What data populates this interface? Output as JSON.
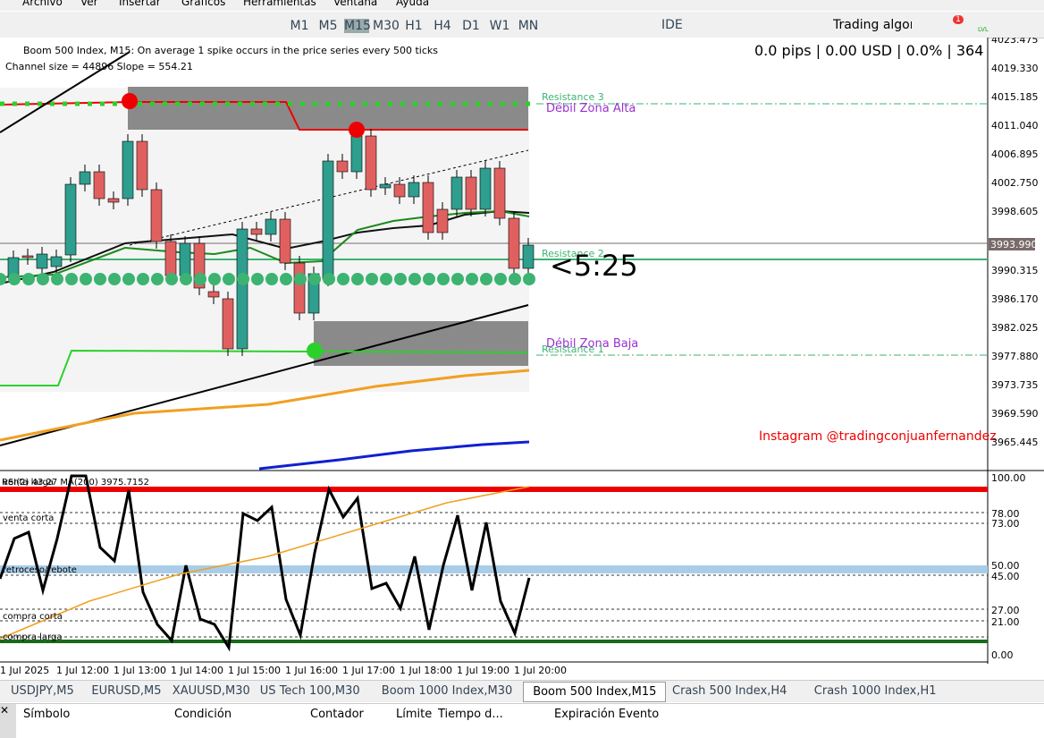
{
  "menu": [
    "Archivo",
    "Ver",
    "Insertar",
    "Gráficos",
    "Herramientas",
    "Ventana",
    "Ayuda"
  ],
  "toolbar": {
    "timeframes": [
      "M1",
      "M5",
      "M15",
      "M30",
      "H1",
      "H4",
      "D1",
      "W1",
      "MN"
    ],
    "active_timeframe": 2,
    "ide": "IDE",
    "search": "Trading algorítr",
    "notifications": "1",
    "lvl": "LVL"
  },
  "chart": {
    "header": "Boom 500 Index, M15:  On average 1 spike occurs in the price series every 500 ticks",
    "channel": "Channel size = 44896 Slope = 554.21",
    "stats": "0.0 pips | 0.00 USD | 0.0% | 364",
    "annotations": {
      "resistance3": "Resistance 3",
      "zona_alta": "Débil Zona Alta",
      "resistance2": "Resistance 2",
      "timer": "<5:25",
      "zona_baja": "Débil Zona Baja",
      "resistance1": "Resistance 1",
      "instagram": "Instagram @tradingconjuanfernandez"
    },
    "price_axis": [
      "4023.475",
      "4019.330",
      "4015.185",
      "4011.040",
      "4006.895",
      "4002.750",
      "3998.605",
      "3990.315",
      "3986.170",
      "3982.025",
      "3977.880",
      "3973.735",
      "3969.590",
      "3965.445"
    ],
    "current_price": "3993.990"
  },
  "rsi": {
    "header": "RSI(2) 43.27 MA(200) 3975.7152",
    "levels": [
      "venta larga",
      "venta corta",
      "retroceso/rebote",
      "compra corta",
      "compra larga"
    ],
    "axis": [
      "100.00",
      "78.00",
      "73.00",
      "50.00",
      "45.00",
      "27.00",
      "21.00",
      "0.00"
    ]
  },
  "time_axis": [
    "1 Jul 2025",
    "1 Jul 12:00",
    "1 Jul 13:00",
    "1 Jul 14:00",
    "1 Jul 15:00",
    "1 Jul 16:00",
    "1 Jul 17:00",
    "1 Jul 18:00",
    "1 Jul 19:00",
    "1 Jul 20:00"
  ],
  "tabs": [
    "USDJPY,M5",
    "EURUSD,M5",
    "XAUUSD,M30",
    "US Tech 100,M30",
    "Boom 1000 Index,M30",
    "Boom 500 Index,M15",
    "Crash 500 Index,H4",
    "Crash 1000 Index,H1"
  ],
  "active_tab": 5,
  "alerts_columns": [
    "Símbolo",
    "Condición",
    "Contador",
    "Límite",
    "Tiempo d...",
    "Expiración",
    "Evento"
  ]
}
